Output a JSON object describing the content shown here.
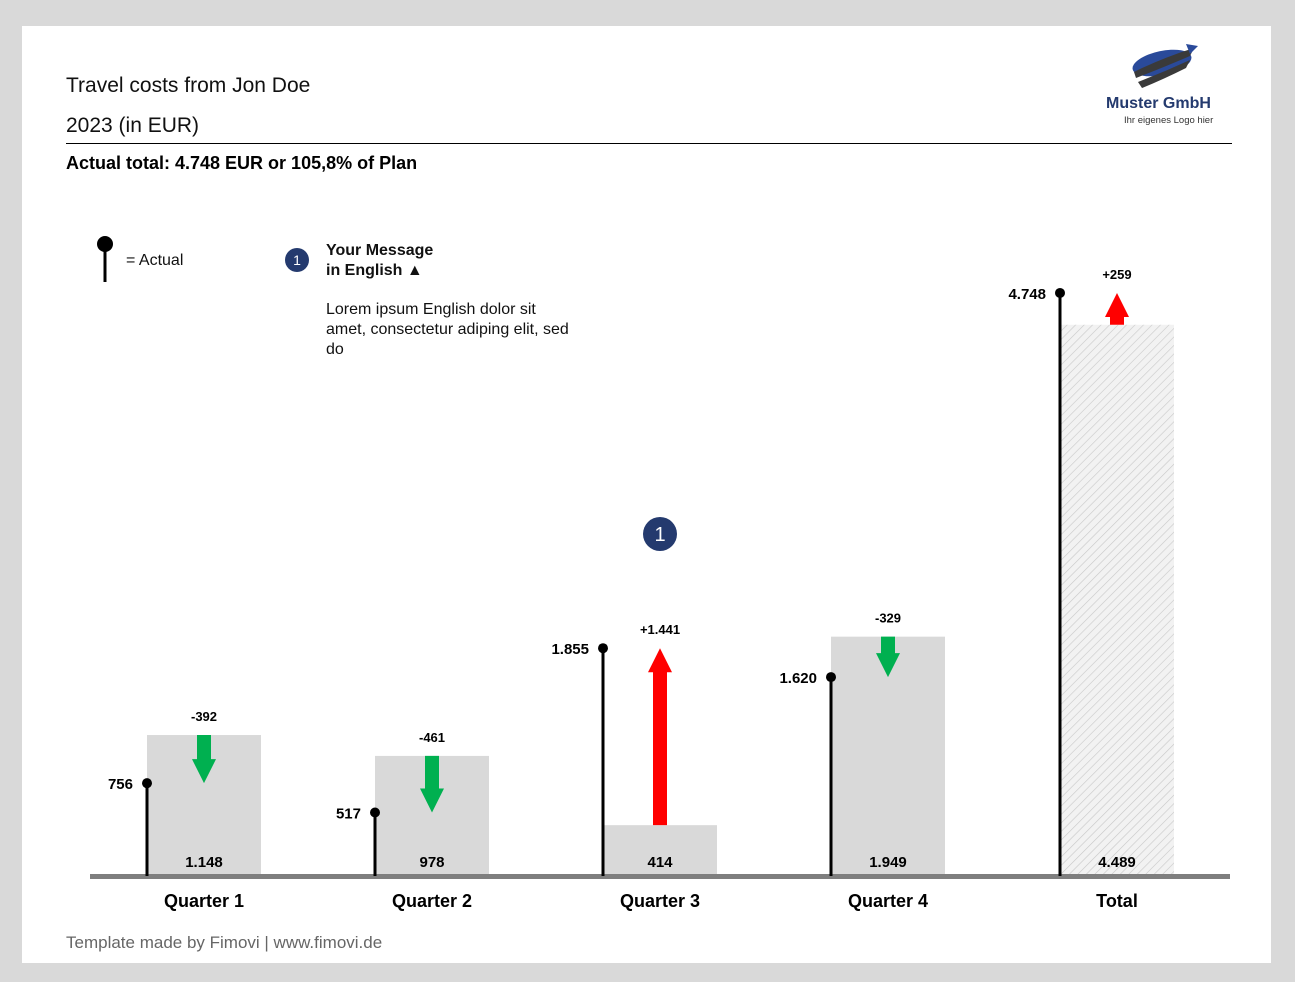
{
  "header": {
    "title_line1": "Travel costs from Jon Doe",
    "title_line2": "2023 (in EUR)",
    "subtitle": "Actual total: 4.748 EUR or 105,8% of Plan"
  },
  "logo": {
    "name": "Muster GmbH",
    "tagline": "Ihr eigenes Logo hier",
    "colors": {
      "blue": "#2a4a9a",
      "dark": "#3a3a3a"
    }
  },
  "legend": {
    "actual_label": "= Actual",
    "icon": "lollipop-marker"
  },
  "message": {
    "badge": "1",
    "title_line1": "Your Message",
    "title_line2": "in English ▲",
    "body": "Lorem ipsum English dolor sit amet, consectetur adiping elit, sed do"
  },
  "footer": {
    "text": "Template made by Fimovi  |  www.fimovi.de"
  },
  "colors": {
    "plan_bar": "#d9d9d9",
    "baseline": "#7f7f7f",
    "increase": "#ff0000",
    "decrease": "#00b050",
    "badge": "#243a6e"
  },
  "chart_data": {
    "type": "bar",
    "categories": [
      "Quarter 1",
      "Quarter 2",
      "Quarter 3",
      "Quarter 4",
      "Total"
    ],
    "series": [
      {
        "name": "Plan",
        "values": [
          1148,
          978,
          414,
          1949,
          4489
        ]
      },
      {
        "name": "Actual",
        "values": [
          756,
          517,
          1855,
          1620,
          4748
        ]
      }
    ],
    "plan_labels": [
      "1.148",
      "978",
      "414",
      "1.949",
      "4.489"
    ],
    "actual_labels": [
      "756",
      "517",
      "1.855",
      "1.620",
      "4.748"
    ],
    "delta_values": [
      -392,
      -461,
      1441,
      -329,
      259
    ],
    "delta_labels": [
      "-392",
      "-461",
      "+1.441",
      "-329",
      "+259"
    ],
    "annotation_badge": {
      "category": "Quarter 3",
      "label": "1"
    },
    "total_bar_style": "hatched",
    "ylim": [
      0,
      4800
    ],
    "grid": false,
    "legend": "top-left"
  }
}
